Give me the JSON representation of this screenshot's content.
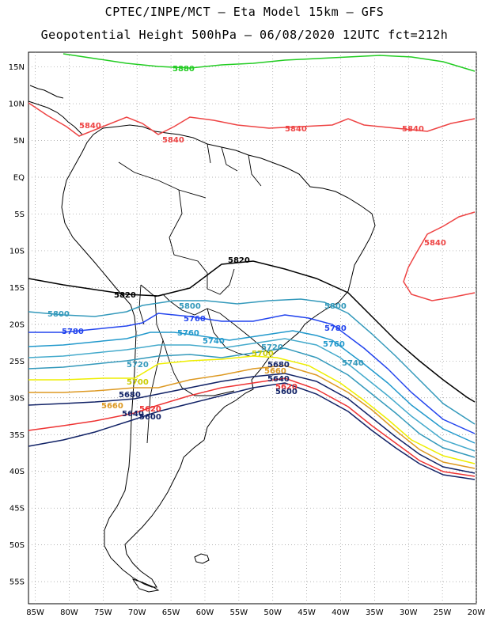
{
  "header": {
    "line1": "CPTEC/INPE/MCT –  Eta Model 15km – GFS",
    "line2": "Geopotential Height 500hPa – 06/08/2020 12UTC fct=212h"
  },
  "map_data": {
    "type": "contour_map",
    "lon_range": [
      -86,
      -20
    ],
    "lat_range": [
      -58,
      17
    ],
    "lon_ticks": [
      "85W",
      "80W",
      "75W",
      "70W",
      "65W",
      "60W",
      "55W",
      "50W",
      "45W",
      "40W",
      "35W",
      "30W",
      "25W",
      "20W"
    ],
    "lat_ticks": [
      "15N",
      "10N",
      "5N",
      "EQ",
      "5S",
      "10S",
      "15S",
      "20S",
      "25S",
      "30S",
      "35S",
      "40S",
      "45S",
      "50S",
      "55S"
    ],
    "contours": [
      {
        "level": "5880",
        "color": "#22cc22"
      },
      {
        "level": "5840",
        "color": "#ee4444"
      },
      {
        "level": "5820",
        "color": "#000000"
      },
      {
        "level": "5800",
        "color": "#3399bb"
      },
      {
        "level": "5780",
        "color": "#2244ee"
      },
      {
        "level": "5760",
        "color": "#2299cc"
      },
      {
        "level": "5740",
        "color": "#44aacc"
      },
      {
        "level": "5720",
        "color": "#3399bb"
      },
      {
        "level": "5700",
        "color": "#eeee00"
      },
      {
        "level": "5680",
        "color": "#dd9922"
      },
      {
        "level": "5660",
        "color": "#112266"
      },
      {
        "level": "5640",
        "color": "#ee3333"
      },
      {
        "level": "5620",
        "color": "#112266"
      }
    ],
    "labels": [
      {
        "text": "5880",
        "color": "#22cc22"
      },
      {
        "text": "5840",
        "color": "#ee4444"
      },
      {
        "text": "5840",
        "color": "#ee4444"
      },
      {
        "text": "5840",
        "color": "#ee4444"
      },
      {
        "text": "5840",
        "color": "#ee4444"
      },
      {
        "text": "5840",
        "color": "#ee4444"
      },
      {
        "text": "5820",
        "color": "#000000"
      },
      {
        "text": "5820",
        "color": "#000000"
      },
      {
        "text": "5800",
        "color": "#3399bb"
      },
      {
        "text": "5800",
        "color": "#3399bb"
      },
      {
        "text": "5800",
        "color": "#3399bb"
      },
      {
        "text": "5780",
        "color": "#2244ee"
      },
      {
        "text": "5760",
        "color": "#2244ee"
      },
      {
        "text": "5780",
        "color": "#2244ee"
      },
      {
        "text": "5760",
        "color": "#2299cc"
      },
      {
        "text": "5740",
        "color": "#2299cc"
      },
      {
        "text": "5760",
        "color": "#2299cc"
      },
      {
        "text": "5720",
        "color": "#3399bb"
      },
      {
        "text": "5720",
        "color": "#3399bb"
      },
      {
        "text": "5740",
        "color": "#3399bb"
      },
      {
        "text": "5700",
        "color": "#cccc00"
      },
      {
        "text": "5700",
        "color": "#cccc00"
      },
      {
        "text": "5680",
        "color": "#112266"
      },
      {
        "text": "5680",
        "color": "#112266"
      },
      {
        "text": "5660",
        "color": "#dd9922"
      },
      {
        "text": "5660",
        "color": "#dd9922"
      },
      {
        "text": "5640",
        "color": "#112266"
      },
      {
        "text": "5640",
        "color": "#112266"
      },
      {
        "text": "5620",
        "color": "#ee3333"
      },
      {
        "text": "5620",
        "color": "#ee3333"
      },
      {
        "text": "5600",
        "color": "#112266"
      },
      {
        "text": "5600",
        "color": "#112266"
      }
    ]
  }
}
